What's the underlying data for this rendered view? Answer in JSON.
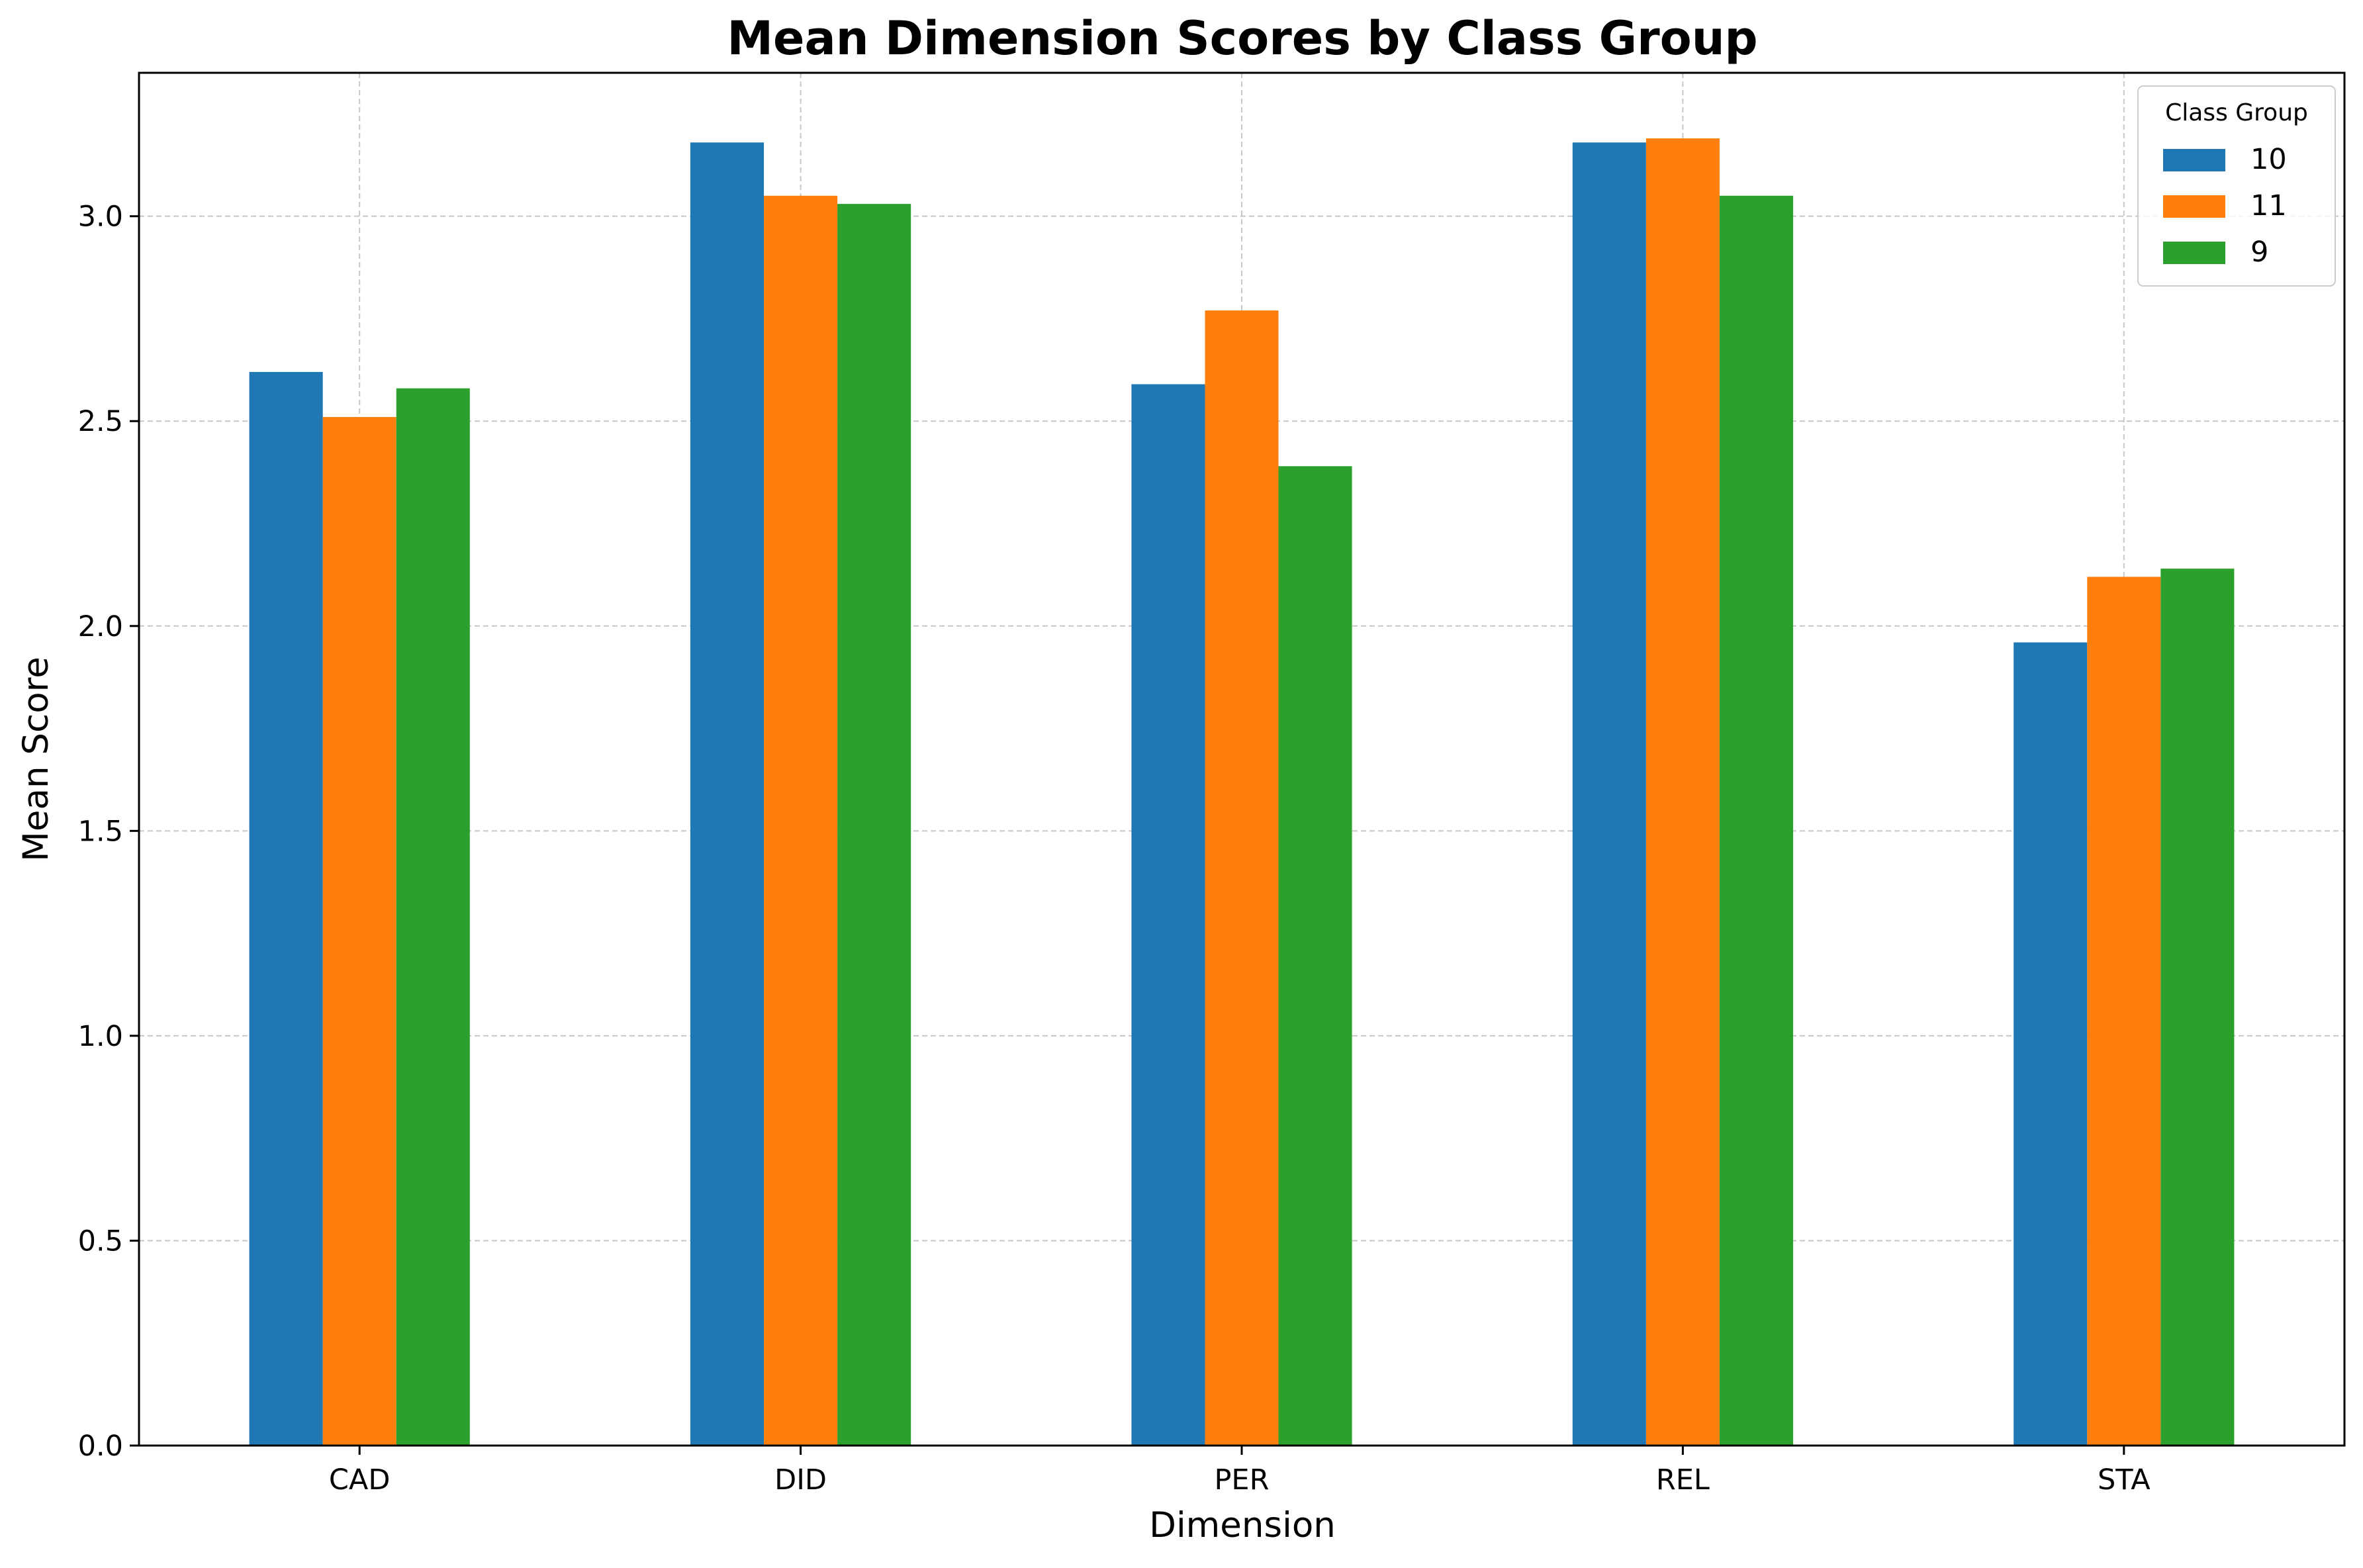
{
  "chart_data": {
    "type": "bar",
    "title": "Mean Dimension Scores by Class Group",
    "xlabel": "Dimension",
    "ylabel": "Mean Score",
    "categories": [
      "CAD",
      "DID",
      "PER",
      "REL",
      "STA"
    ],
    "series": [
      {
        "name": "10",
        "color": "#1f77b4",
        "values": [
          2.62,
          3.18,
          2.59,
          3.18,
          1.96
        ]
      },
      {
        "name": "11",
        "color": "#ff7f0e",
        "values": [
          2.51,
          3.05,
          2.77,
          3.19,
          2.12
        ]
      },
      {
        "name": "9",
        "color": "#2ca02c",
        "values": [
          2.58,
          3.03,
          2.39,
          3.05,
          2.14
        ]
      }
    ],
    "ylim": [
      0,
      3.35
    ],
    "yticks": [
      "0.0",
      "0.5",
      "1.0",
      "1.5",
      "2.0",
      "2.5",
      "3.0"
    ],
    "grid": true,
    "legend": {
      "title": "Class Group",
      "placement": "top-right"
    }
  }
}
